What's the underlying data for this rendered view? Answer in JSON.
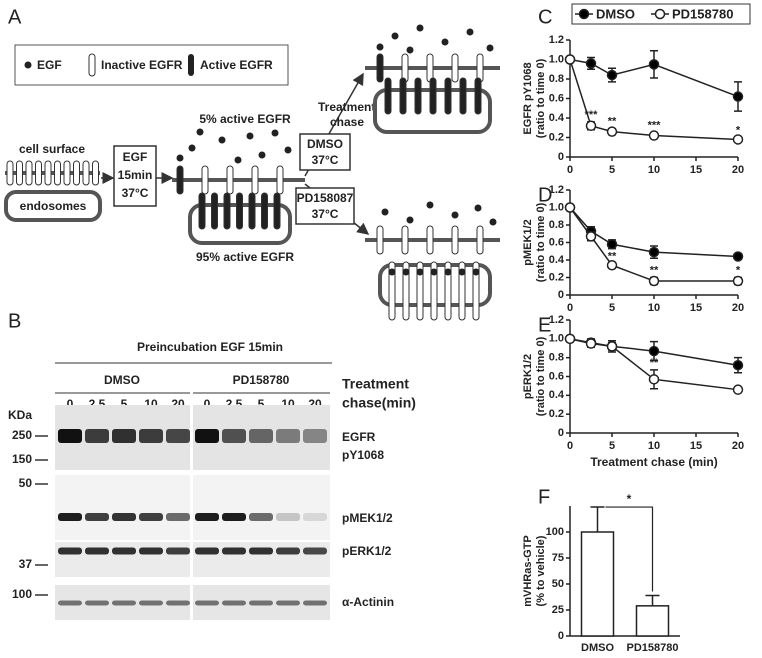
{
  "diagram": {
    "panel": "A",
    "legend": [
      "EGF",
      "Inactive EGFR",
      "Active EGFR"
    ],
    "cell_surface": "cell surface",
    "endosomes": "endosomes",
    "egf_step": [
      "EGF",
      "15min",
      "37°C"
    ],
    "active_surface": "5% active EGFR",
    "active_endosome": "95% active EGFR",
    "chase": [
      "Treatment",
      "chase"
    ],
    "dmso": [
      "DMSO",
      "37°C"
    ],
    "pd": [
      "PD158087",
      "37°C"
    ]
  },
  "blot": {
    "panel": "B",
    "title": "Preincubation EGF 15min",
    "groups": [
      "DMSO",
      "PD158780"
    ],
    "chase_label": [
      "Treatment",
      "chase(min)"
    ],
    "lanes": [
      "0",
      "2.5",
      "5",
      "10",
      "20"
    ],
    "kda_label": "KDa",
    "markers": [
      "250",
      "150",
      "50",
      "37",
      "100"
    ],
    "rows": [
      "EGFR",
      "pY1068",
      "pMEK1/2",
      "pERK1/2",
      "α-Actinin"
    ]
  },
  "chart_data": [
    {
      "type": "line",
      "panel": "C",
      "ylabel": [
        "EGFR pY1068",
        "(ratio to time 0)"
      ],
      "legend": true,
      "x": [
        0,
        2.5,
        5,
        10,
        20
      ],
      "xlim": [
        0,
        20
      ],
      "xticks": [
        0,
        5,
        10,
        15,
        20
      ],
      "ylim": [
        0,
        1.2
      ],
      "yticks": [
        0,
        0.2,
        0.4,
        0.6,
        0.8,
        {
          "value": 1,
          "label": "1.0"
        },
        1.2
      ],
      "series": [
        {
          "name": "DMSO",
          "color": "#000000",
          "values": [
            1.0,
            0.96,
            0.84,
            0.95,
            0.62
          ],
          "errors": [
            0,
            0.06,
            0.07,
            0.14,
            0.15
          ]
        },
        {
          "name": "PD158780",
          "color": "#ffffff",
          "values": [
            1.0,
            0.32,
            0.26,
            0.22,
            0.18
          ],
          "errors": [
            0,
            0.04,
            0.03,
            0.03,
            0.02
          ]
        }
      ],
      "annotations": [
        {
          "x": 2.5,
          "text": "***"
        },
        {
          "x": 5,
          "text": "**"
        },
        {
          "x": 10,
          "text": "***"
        },
        {
          "x": 20,
          "text": "*"
        }
      ]
    },
    {
      "type": "line",
      "panel": "D",
      "ylabel": [
        "pMEK1/2",
        "(ratio to time 0)"
      ],
      "x": [
        0,
        2.5,
        5,
        10,
        20
      ],
      "xlim": [
        0,
        20
      ],
      "xticks": [
        0,
        5,
        10,
        15,
        20
      ],
      "ylim": [
        0,
        1.2
      ],
      "yticks": [
        0,
        0.2,
        0.4,
        0.6,
        0.8,
        {
          "value": 1,
          "label": "1.0"
        },
        1.2
      ],
      "series": [
        {
          "color": "#000000",
          "values": [
            1.0,
            0.73,
            0.58,
            0.49,
            0.44
          ],
          "errors": [
            0,
            0.05,
            0.05,
            0.07,
            0.02
          ]
        },
        {
          "color": "#ffffff",
          "values": [
            1.0,
            0.67,
            0.34,
            0.16,
            0.16
          ],
          "errors": [
            0,
            0.05,
            0.02,
            0.04,
            0.04
          ]
        }
      ],
      "annotations": [
        {
          "x": 5,
          "text": "**"
        },
        {
          "x": 10,
          "text": "**"
        },
        {
          "x": 20,
          "text": "*"
        }
      ]
    },
    {
      "type": "line",
      "panel": "E",
      "ylabel": [
        "pERK1/2",
        "(ratio to time 0)"
      ],
      "xlabel": "Treatment chase (min)",
      "x": [
        0,
        2.5,
        5,
        10,
        20
      ],
      "xlim": [
        0,
        20
      ],
      "xticks": [
        0,
        5,
        10,
        15,
        20
      ],
      "ylim": [
        0,
        1.2
      ],
      "yticks": [
        0,
        0.2,
        0.4,
        0.6,
        0.8,
        {
          "value": 1,
          "label": "1.0"
        },
        1.2
      ],
      "series": [
        {
          "color": "#000000",
          "values": [
            1.0,
            0.96,
            0.92,
            0.87,
            0.72
          ],
          "errors": [
            0,
            0.04,
            0.06,
            0.1,
            0.08
          ]
        },
        {
          "color": "#ffffff",
          "values": [
            1.0,
            0.95,
            0.92,
            0.57,
            0.46
          ],
          "errors": [
            0,
            0.04,
            0.04,
            0.1,
            0.02
          ]
        }
      ],
      "annotations": [
        {
          "x": 10,
          "text": "**"
        }
      ]
    },
    {
      "type": "bar",
      "panel": "F",
      "ylabel": [
        "mVHRas-GTP",
        "(% to vehicle)"
      ],
      "categories": [
        "DMSO",
        "PD158780"
      ],
      "values": [
        100,
        29
      ],
      "errors": [
        24,
        10
      ],
      "color": "#ffffff",
      "ylim": [
        0,
        125
      ],
      "yticks": [
        0,
        25,
        50,
        75,
        100
      ],
      "significance": "*"
    }
  ]
}
